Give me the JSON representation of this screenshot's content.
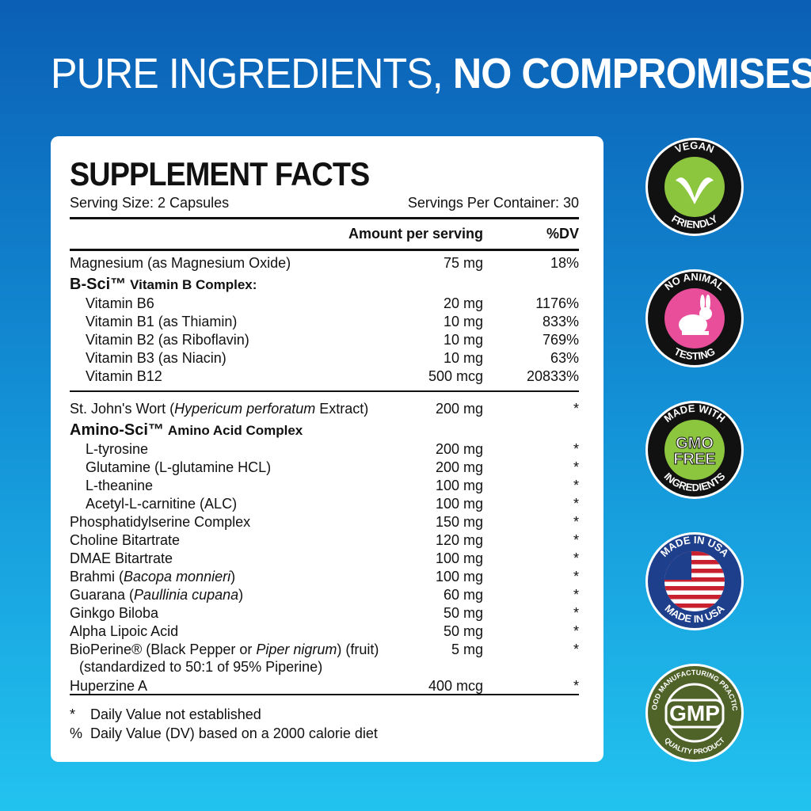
{
  "headline": {
    "light": "PURE INGREDIENTS,",
    "bold": "NO COMPROMISES"
  },
  "facts": {
    "title": "SUPPLEMENT FACTS",
    "serving_size": "Serving Size: 2 Capsules",
    "servings_per_container": "Servings Per Container: 30",
    "col_amount": "Amount per serving",
    "col_dv": "%DV",
    "rows": [
      {
        "name": "Magnesium (as Magnesium Oxide)",
        "amount": "75 mg",
        "dv": "18%"
      },
      {
        "type": "group",
        "brand": "B-Sci™",
        "name": "Vitamin B Complex:"
      },
      {
        "indent": true,
        "name": "Vitamin B6",
        "amount": "20 mg",
        "dv": "1176%"
      },
      {
        "indent": true,
        "name": "Vitamin B1 (as Thiamin)",
        "amount": "10 mg",
        "dv": "833%"
      },
      {
        "indent": true,
        "name": "Vitamin B2 (as Riboflavin)",
        "amount": "10 mg",
        "dv": "769%"
      },
      {
        "indent": true,
        "name": "Vitamin B3 (as Niacin)",
        "amount": "10 mg",
        "dv": "63%"
      },
      {
        "indent": true,
        "name": "Vitamin B12",
        "amount": "500 mcg",
        "dv": "20833%"
      },
      {
        "type": "separator"
      },
      {
        "name": "St. John's Wort (",
        "italic": "Hypericum perforatum",
        "post": " Extract)",
        "amount": "200 mg",
        "dv": "*"
      },
      {
        "type": "group",
        "brand": "Amino-Sci™",
        "name": "Amino Acid Complex"
      },
      {
        "indent": true,
        "name": "L-tyrosine",
        "amount": "200 mg",
        "dv": "*"
      },
      {
        "indent": true,
        "name": "Glutamine (L-glutamine HCL)",
        "amount": "200 mg",
        "dv": "*"
      },
      {
        "indent": true,
        "name": "L-theanine",
        "amount": "100 mg",
        "dv": "*"
      },
      {
        "indent": true,
        "name": "Acetyl-L-carnitine (ALC)",
        "amount": "100 mg",
        "dv": "*"
      },
      {
        "name": "Phosphatidylserine Complex",
        "amount": "150 mg",
        "dv": "*"
      },
      {
        "name": "Choline Bitartrate",
        "amount": "120 mg",
        "dv": "*"
      },
      {
        "name": "DMAE Bitartrate",
        "amount": "100 mg",
        "dv": "*"
      },
      {
        "name": "Brahmi (",
        "italic": "Bacopa monnieri",
        "post": ")",
        "amount": "100 mg",
        "dv": "*"
      },
      {
        "name": "Guarana (",
        "italic": "Paullinia cupana",
        "post": ")",
        "amount": "60 mg",
        "dv": "*"
      },
      {
        "name": "Ginkgo Biloba",
        "amount": "50 mg",
        "dv": "*"
      },
      {
        "name": "Alpha Lipoic Acid",
        "amount": "50 mg",
        "dv": "*"
      },
      {
        "name": "BioPerine® (Black Pepper or ",
        "italic": "Piper nigrum",
        "post": ") (fruit)",
        "line2": "(standardized to 50:1 of 95% Piperine)",
        "amount": "5 mg",
        "dv": "*"
      },
      {
        "name": "Huperzine A",
        "amount": "400 mcg",
        "dv": "*"
      }
    ],
    "footnotes": [
      {
        "symbol": "*",
        "text": "Daily Value not established"
      },
      {
        "symbol": "%",
        "text": "Daily Value (DV) based on a 2000 calorie diet"
      }
    ]
  },
  "badges": [
    {
      "icon": "vegan-leaf-icon",
      "top": "VEGAN",
      "bottom": "FRIENDLY",
      "color": "#8cc63f"
    },
    {
      "icon": "rabbit-icon",
      "top": "NO ANIMAL",
      "bottom": "TESTING",
      "color": "#e94e9b"
    },
    {
      "icon": "gmo-free-icon",
      "top": "MADE WITH",
      "center": "GMO FREE",
      "bottom": "INGREDIENTS",
      "color": "#8cc63f"
    },
    {
      "icon": "usa-flag-icon",
      "top": "MADE IN USA",
      "bottom": "MADE IN USA",
      "color": "#1d3f8c"
    },
    {
      "icon": "gmp-seal-icon",
      "top": "GOOD MANUFACTURING PRACTICE",
      "center": "GMP",
      "bottom": "QUALITY PRODUCT",
      "color": "#4f6228"
    }
  ]
}
